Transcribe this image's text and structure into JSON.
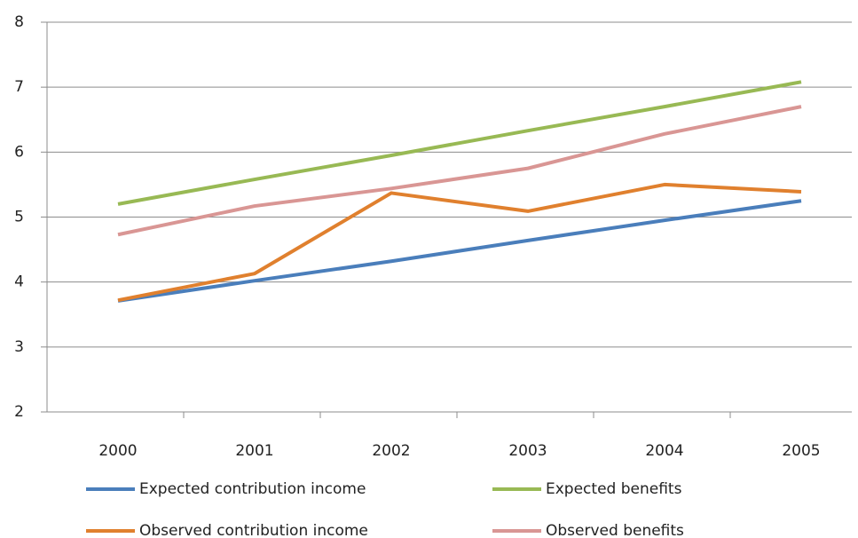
{
  "chart_data": {
    "type": "line",
    "categories": [
      "2000",
      "2001",
      "2002",
      "2003",
      "2004",
      "2005"
    ],
    "series": [
      {
        "name": "Expected contribution income",
        "color": "#4a7ebb",
        "values": [
          3.71,
          4.02,
          4.32,
          4.64,
          4.95,
          5.25
        ]
      },
      {
        "name": "Expected benefits",
        "color": "#98b954",
        "values": [
          5.2,
          5.58,
          5.95,
          6.33,
          6.7,
          7.08
        ]
      },
      {
        "name": "Observed contribution income",
        "color": "#e0802e",
        "values": [
          3.72,
          4.13,
          5.37,
          5.09,
          5.5,
          5.39
        ]
      },
      {
        "name": "Observed benefits",
        "color": "#d99694",
        "values": [
          4.73,
          5.17,
          5.44,
          5.75,
          6.28,
          6.7
        ]
      }
    ],
    "ylim": [
      2,
      8
    ],
    "yticks": [
      2,
      3,
      4,
      5,
      6,
      7,
      8
    ],
    "grid": true
  }
}
